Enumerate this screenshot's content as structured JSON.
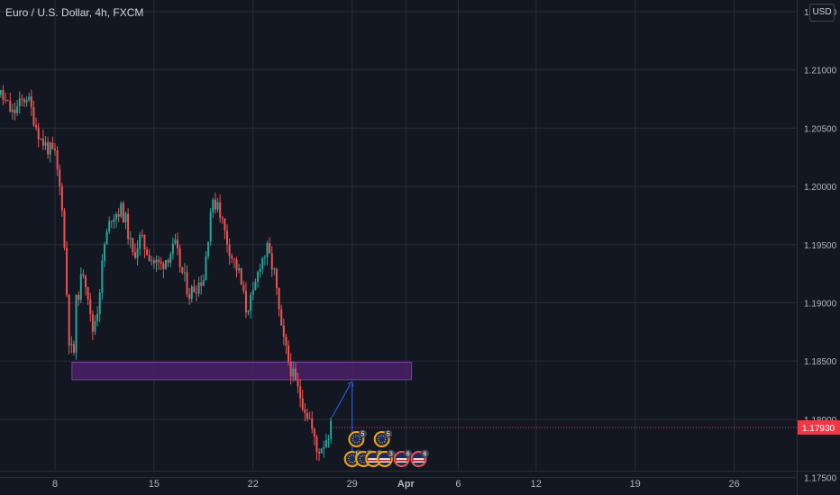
{
  "header": {
    "title": "Euro / U.S. Dollar, 4h, FXCM",
    "currency": "USD"
  },
  "price_tag": {
    "value": "1.17930",
    "color": "#f23645"
  },
  "colors": {
    "background": "#131722",
    "up": "#26a69a",
    "down": "#ef5350",
    "grid": "#2a2e39",
    "zone_fill": "#4a2167",
    "zone_border": "#7b3fa1",
    "projection": "#2962ff",
    "event_eu": "#f7a600",
    "event_us": "#ffffff"
  },
  "chart_data": {
    "type": "candlestick",
    "symbol": "Euro / U.S. Dollar, 4h, FXCM",
    "currency": "USD",
    "ylim": [
      1.1735,
      1.216
    ],
    "y_ticks": [
      "1.17500",
      "1.18000",
      "1.18500",
      "1.19000",
      "1.19500",
      "1.20000",
      "1.20500",
      "1.21000",
      "1.21500"
    ],
    "x_ticks": [
      "8",
      "15",
      "22",
      "29",
      "Apr",
      "6",
      "12",
      "19",
      "26"
    ],
    "grid": true,
    "last_price": 1.1793,
    "close_path": [
      [
        3,
        1.2103
      ],
      [
        4,
        1.2082
      ],
      [
        5,
        1.2062
      ],
      [
        6,
        1.2078
      ],
      [
        7,
        1.204
      ],
      [
        8,
        1.2026
      ],
      [
        8.5,
        1.1985
      ],
      [
        9,
        1.187
      ],
      [
        9.3,
        1.185
      ],
      [
        9.5,
        1.19
      ],
      [
        10,
        1.1928
      ],
      [
        10.3,
        1.1912
      ],
      [
        10.6,
        1.1873
      ],
      [
        11,
        1.1895
      ],
      [
        11.5,
        1.195
      ],
      [
        12,
        1.1975
      ],
      [
        12.7,
        1.198
      ],
      [
        13,
        1.197
      ],
      [
        13.5,
        1.194
      ],
      [
        14,
        1.1955
      ],
      [
        14.5,
        1.1945
      ],
      [
        15,
        1.1935
      ],
      [
        15.5,
        1.1932
      ],
      [
        16,
        1.1941
      ],
      [
        16.5,
        1.1948
      ],
      [
        17,
        1.1925
      ],
      [
        17.5,
        1.1908
      ],
      [
        18,
        1.1915
      ],
      [
        18.5,
        1.1922
      ],
      [
        18.8,
        1.1955
      ],
      [
        19,
        1.198
      ],
      [
        19.5,
        1.1988
      ],
      [
        20,
        1.196
      ],
      [
        20.5,
        1.194
      ],
      [
        21,
        1.1925
      ],
      [
        21.5,
        1.1895
      ],
      [
        22,
        1.1905
      ],
      [
        22.5,
        1.1935
      ],
      [
        23,
        1.1945
      ],
      [
        23.5,
        1.1925
      ],
      [
        24,
        1.1875
      ],
      [
        24.5,
        1.185
      ],
      [
        25,
        1.183
      ],
      [
        25.5,
        1.1815
      ],
      [
        26,
        1.18
      ],
      [
        26.5,
        1.1772
      ],
      [
        27,
        1.178
      ],
      [
        27.5,
        1.1793
      ]
    ],
    "zones": [
      {
        "type": "rectangle",
        "x_start": 9.2,
        "x_end": 33.2,
        "y_low": 1.1834,
        "y_high": 1.1849
      }
    ],
    "projection": {
      "x": 29.0,
      "from": 1.1832,
      "to": 1.1759
    },
    "events": [
      {
        "x": 29.0,
        "row": "lower",
        "flag": "EU",
        "count": "10"
      },
      {
        "x": 29.3,
        "row": "upper",
        "flag": "EU",
        "count": "5"
      },
      {
        "x": 29.8,
        "row": "lower",
        "flag": "EU",
        "count": "5"
      },
      {
        "x": 30.5,
        "row": "lower",
        "flag": "EU-US",
        "count": "5"
      },
      {
        "x": 31.1,
        "row": "upper",
        "flag": "EU",
        "count": "5"
      },
      {
        "x": 31.3,
        "row": "lower",
        "flag": "EU-US",
        "count": "3"
      },
      {
        "x": 32.5,
        "row": "lower",
        "flag": "US",
        "count": "6"
      },
      {
        "x": 33.7,
        "row": "lower",
        "flag": "US",
        "count": "6"
      }
    ]
  }
}
